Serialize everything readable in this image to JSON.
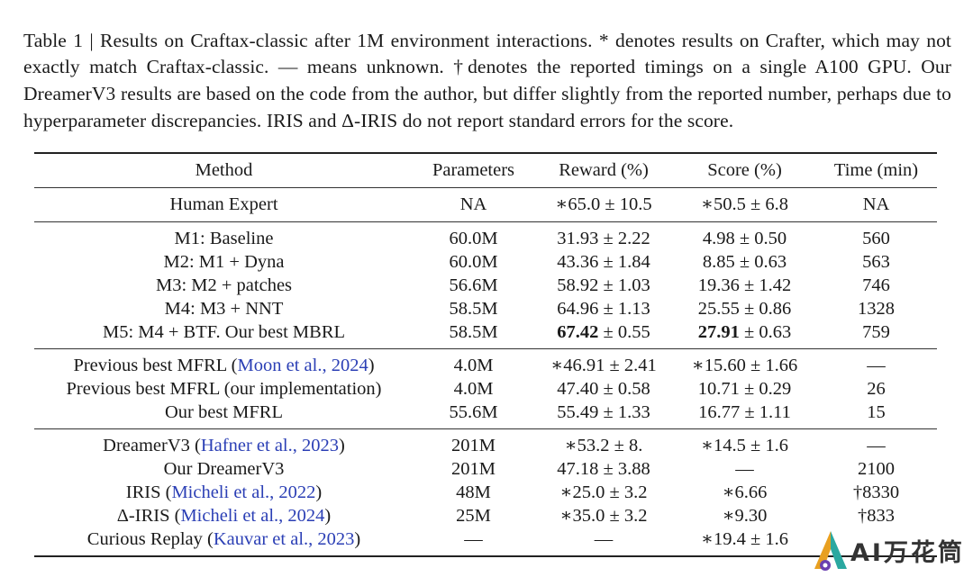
{
  "caption": "Table 1 | Results on Craftax-classic after 1M environment interactions. * denotes results on Crafter, which may not exactly match Craftax-classic. — means unknown. †denotes the reported timings on a single A100 GPU. Our DreamerV3 results are based on the code from the author, but differ slightly from the reported number, perhaps due to hyperparameter discrepancies. IRIS and Δ-IRIS do not report standard errors for the score.",
  "table": {
    "headers": [
      "Method",
      "Parameters",
      "Reward (%)",
      "Score (%)",
      "Time (min)"
    ],
    "human": {
      "method": "Human Expert",
      "params": "NA",
      "reward": "∗65.0 ± 10.5",
      "score": "∗50.5 ± 6.8",
      "time": "NA"
    },
    "mbrl": [
      {
        "method": "M1: Baseline",
        "params": "60.0M",
        "reward": "31.93 ± 2.22",
        "score": "4.98 ± 0.50",
        "time": "560"
      },
      {
        "method": "M2: M1 + Dyna",
        "params": "60.0M",
        "reward": "43.36 ± 1.84",
        "score": "8.85 ± 0.63",
        "time": "563"
      },
      {
        "method": "M3: M2 + patches",
        "params": "56.6M",
        "reward": "58.92 ± 1.03",
        "score": "19.36 ± 1.42",
        "time": "746"
      },
      {
        "method": "M4: M3 + NNT",
        "params": "58.5M",
        "reward": "64.96 ± 1.13",
        "score": "25.55 ± 0.86",
        "time": "1328"
      }
    ],
    "best_mbrl": {
      "method": "M5: M4 + BTF. Our best MBRL",
      "params": "58.5M",
      "reward_bold": "67.42",
      "reward_err": " ± 0.55",
      "score_bold": "27.91",
      "score_err": " ± 0.63",
      "time": "759"
    },
    "mfrl": {
      "r1": {
        "method": "Previous best MFRL (",
        "cite": "Moon et al., 2024",
        "close": ")",
        "params": "4.0M",
        "reward": "∗46.91 ± 2.41",
        "score": "∗15.60 ± 1.66",
        "time": "—"
      },
      "r2": {
        "method": "Previous best MFRL (our implementation)",
        "params": "4.0M",
        "reward": "47.40 ± 0.58",
        "score": "10.71 ± 0.29",
        "time": "26"
      },
      "r3": {
        "method": "Our best MFRL",
        "params": "55.6M",
        "reward": "55.49 ± 1.33",
        "score": "16.77 ± 1.11",
        "time": "15"
      }
    },
    "others": {
      "r1": {
        "method": "DreamerV3 (",
        "cite": "Hafner et al., 2023",
        "close": ")",
        "params": "201M",
        "reward": "∗53.2 ± 8.",
        "score": "∗14.5 ± 1.6",
        "time": "—"
      },
      "r2": {
        "method": "Our DreamerV3",
        "params": "201M",
        "reward": "47.18 ± 3.88",
        "score": "—",
        "time": "2100"
      },
      "r3": {
        "method": "IRIS (",
        "cite": "Micheli et al., 2022",
        "close": ")",
        "params": "48M",
        "reward": "∗25.0 ± 3.2",
        "score": "∗6.66",
        "time": "†8330"
      },
      "r4": {
        "method": "Δ-IRIS (",
        "cite": "Micheli et al., 2024",
        "close": ")",
        "params": "25M",
        "reward": "∗35.0 ± 3.2",
        "score": "∗9.30",
        "time": "†833"
      },
      "r5": {
        "method": "Curious Replay (",
        "cite": "Kauvar et al., 2023",
        "close": ")",
        "params": "—",
        "reward": "—",
        "score": "∗19.4 ± 1.6",
        "time": ""
      }
    }
  },
  "watermark": {
    "text": "AI万花筒",
    "colors": {
      "orange": "#e8a020",
      "purple": "#6a3fb0",
      "teal": "#2aa8a0"
    }
  }
}
